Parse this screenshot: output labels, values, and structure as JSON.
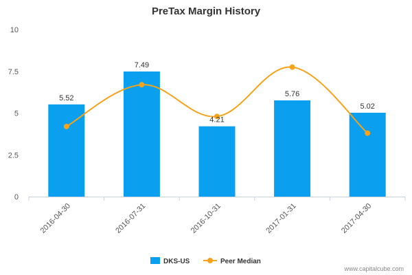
{
  "chart_data": {
    "type": "bar",
    "title": "PreTax Margin History",
    "xlabel": "",
    "ylabel": "",
    "categories": [
      "2016-04-30",
      "2016-07-31",
      "2016-10-31",
      "2017-01-31",
      "2017-04-30"
    ],
    "series": [
      {
        "name": "DKS-US",
        "type": "bar",
        "color": "#0aa0ef",
        "values": [
          5.52,
          7.49,
          4.21,
          5.76,
          5.02
        ],
        "data_labels": [
          "5.52",
          "7.49",
          "4.21",
          "5.76",
          "5.02"
        ]
      },
      {
        "name": "Peer Median",
        "type": "line",
        "color": "#f5a31a",
        "values": [
          4.2,
          6.7,
          4.8,
          7.75,
          3.8
        ]
      }
    ],
    "ylim": [
      0,
      10
    ],
    "yticks": [
      "0",
      "2.5",
      "5",
      "7.5",
      "10"
    ],
    "grid": false,
    "legend_position": "bottom-center"
  },
  "credit": "www.capitalcube.com"
}
